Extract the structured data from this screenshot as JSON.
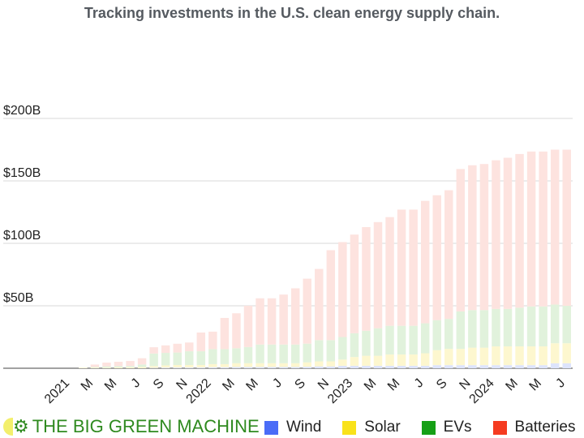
{
  "title": "Tracking investments in the U.S. clean energy supply chain.",
  "brand": {
    "text": "THE BIG GREEN MACHINE",
    "icon": "gear-icon"
  },
  "colors": {
    "wind": "#4a6cf7",
    "solar": "#f9e21a",
    "evs": "#16a016",
    "batteries": "#f53b20",
    "wind_fill": "#dde4fb",
    "solar_fill": "#fdf7cf",
    "evs_fill": "#e1f2dc",
    "batteries_fill": "#fde3df",
    "brand": "#2f8a1f"
  },
  "chart_data": {
    "type": "bar",
    "stacked": true,
    "title": "Tracking investments in the U.S. clean energy supply chain.",
    "ylim": [
      0,
      200
    ],
    "yticks": [
      {
        "value": 50,
        "label": "$50B"
      },
      {
        "value": 100,
        "label": "$100B"
      },
      {
        "value": 150,
        "label": "$150B"
      },
      {
        "value": 200,
        "label": "$200B"
      }
    ],
    "xticks": [
      {
        "index": 0,
        "label": "2021"
      },
      {
        "index": 2,
        "label": "M"
      },
      {
        "index": 4,
        "label": "M"
      },
      {
        "index": 6,
        "label": "J"
      },
      {
        "index": 8,
        "label": "S"
      },
      {
        "index": 10,
        "label": "N"
      },
      {
        "index": 12,
        "label": "2022"
      },
      {
        "index": 14,
        "label": "M"
      },
      {
        "index": 16,
        "label": "M"
      },
      {
        "index": 18,
        "label": "J"
      },
      {
        "index": 20,
        "label": "S"
      },
      {
        "index": 22,
        "label": "N"
      },
      {
        "index": 24,
        "label": "2023"
      },
      {
        "index": 26,
        "label": "M"
      },
      {
        "index": 28,
        "label": "M"
      },
      {
        "index": 30,
        "label": "J"
      },
      {
        "index": 32,
        "label": "S"
      },
      {
        "index": 34,
        "label": "N"
      },
      {
        "index": 36,
        "label": "2024"
      },
      {
        "index": 38,
        "label": "M"
      },
      {
        "index": 40,
        "label": "M"
      },
      {
        "index": 42,
        "label": "J"
      }
    ],
    "categories": [
      "2021-01",
      "2021-02",
      "2021-03",
      "2021-04",
      "2021-05",
      "2021-06",
      "2021-07",
      "2021-08",
      "2021-09",
      "2021-10",
      "2021-11",
      "2021-12",
      "2022-01",
      "2022-02",
      "2022-03",
      "2022-04",
      "2022-05",
      "2022-06",
      "2022-07",
      "2022-08",
      "2022-09",
      "2022-10",
      "2022-11",
      "2022-12",
      "2023-01",
      "2023-02",
      "2023-03",
      "2023-04",
      "2023-05",
      "2023-06",
      "2023-07",
      "2023-08",
      "2023-09",
      "2023-10",
      "2023-11",
      "2023-12",
      "2024-01",
      "2024-02",
      "2024-03",
      "2024-04",
      "2024-05",
      "2024-06",
      "2024-07",
      "2024-08"
    ],
    "legend": {
      "placement": "bottom",
      "entries": [
        "Wind",
        "Solar",
        "EVs",
        "Batteries"
      ]
    },
    "series": [
      {
        "name": "Wind",
        "key": "wind",
        "values": [
          0,
          0,
          0,
          0,
          0,
          0,
          0,
          0,
          0.3,
          0.5,
          0.6,
          0.6,
          0.6,
          0.8,
          0.8,
          1,
          1,
          1,
          1,
          1,
          1,
          1.2,
          1.5,
          1.5,
          2,
          2,
          2,
          2,
          2,
          2,
          2,
          2,
          2.5,
          2.5,
          2.5,
          2.5,
          2.5,
          2.5,
          2.5,
          2.5,
          2.5,
          2.5,
          4,
          4
        ]
      },
      {
        "name": "Solar",
        "key": "solar",
        "values": [
          0,
          0,
          0.5,
          0.5,
          0.5,
          0.7,
          0.8,
          1,
          1.5,
          1.8,
          2,
          2,
          2,
          2.5,
          2.5,
          3,
          3,
          3,
          3,
          3,
          3,
          3.5,
          4,
          4,
          5,
          7,
          8,
          8,
          9,
          9,
          9,
          10,
          12,
          13,
          13,
          14,
          14,
          15,
          15,
          15,
          15,
          15,
          16,
          16
        ]
      },
      {
        "name": "EVs",
        "key": "evs",
        "values": [
          0,
          0,
          0,
          0.5,
          1,
          1,
          1,
          2,
          10,
          10,
          10,
          11,
          11,
          12,
          12,
          12,
          13,
          15,
          15,
          15,
          15,
          15,
          17,
          17,
          18,
          19,
          20,
          22,
          23,
          23,
          23,
          24,
          24,
          24,
          30,
          30,
          30,
          30,
          30,
          31,
          32,
          32,
          31,
          30
        ]
      },
      {
        "name": "Batteries",
        "key": "batteries",
        "values": [
          0,
          0,
          0,
          2,
          3,
          3.5,
          4,
          5,
          5,
          6,
          7,
          7,
          15,
          14,
          25,
          28,
          33,
          37,
          37,
          40,
          45,
          52,
          57,
          72,
          76,
          79,
          83,
          85,
          87,
          93,
          93,
          98,
          100,
          103,
          114,
          116,
          117,
          119,
          121,
          123,
          124,
          124,
          124,
          125
        ]
      }
    ]
  }
}
